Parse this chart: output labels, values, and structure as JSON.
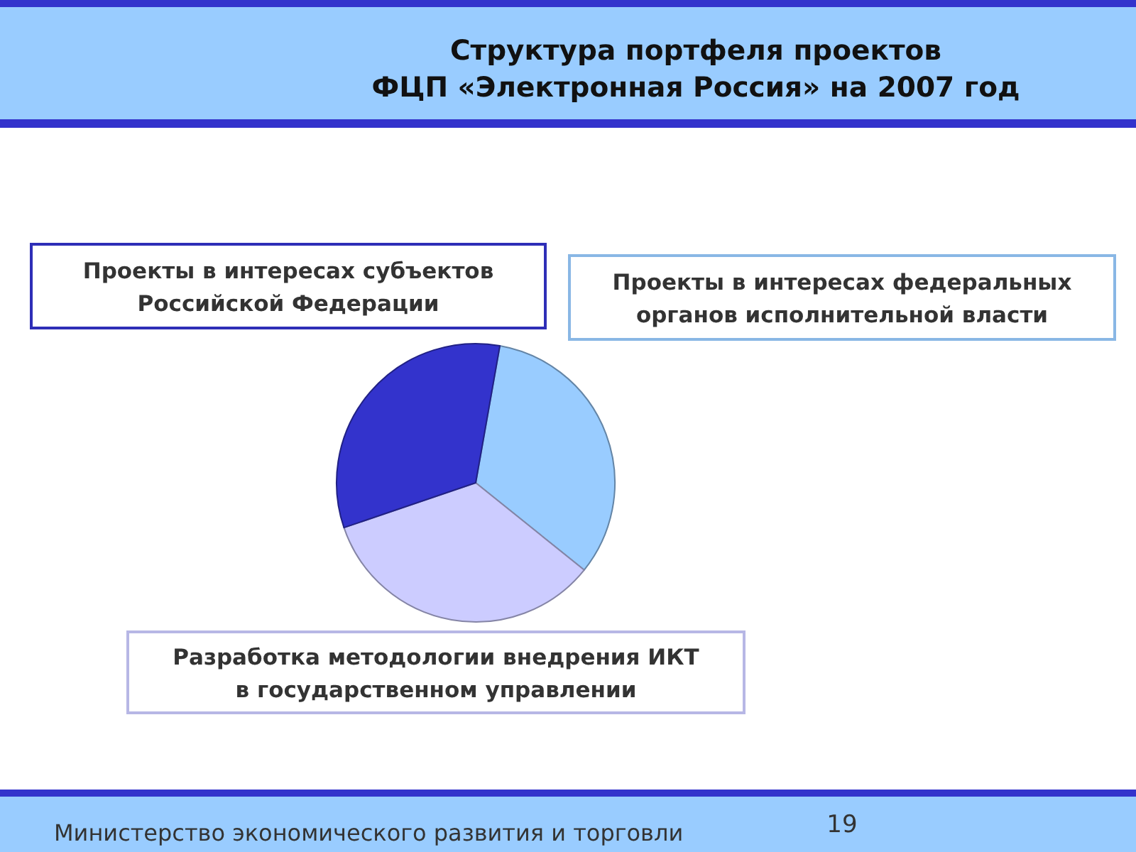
{
  "chart_data": {
    "type": "pie",
    "title": "Структура портфеля проектов\nФЦП «Электронная Россия» на 2007 год",
    "categories": [
      "Проекты в интересах федеральных\nорганов исполнительной власти",
      "Разработка методологии внедрения ИКТ\nв государственном управлении",
      "Проекты в интересах субъектов\nРоссийской Федерации"
    ],
    "values": [
      33,
      34,
      33
    ],
    "colors": [
      "#99ccff",
      "#ccccff",
      "#3333cc"
    ],
    "annotations": [
      "Министерство экономического развития и торговли",
      "19"
    ]
  }
}
